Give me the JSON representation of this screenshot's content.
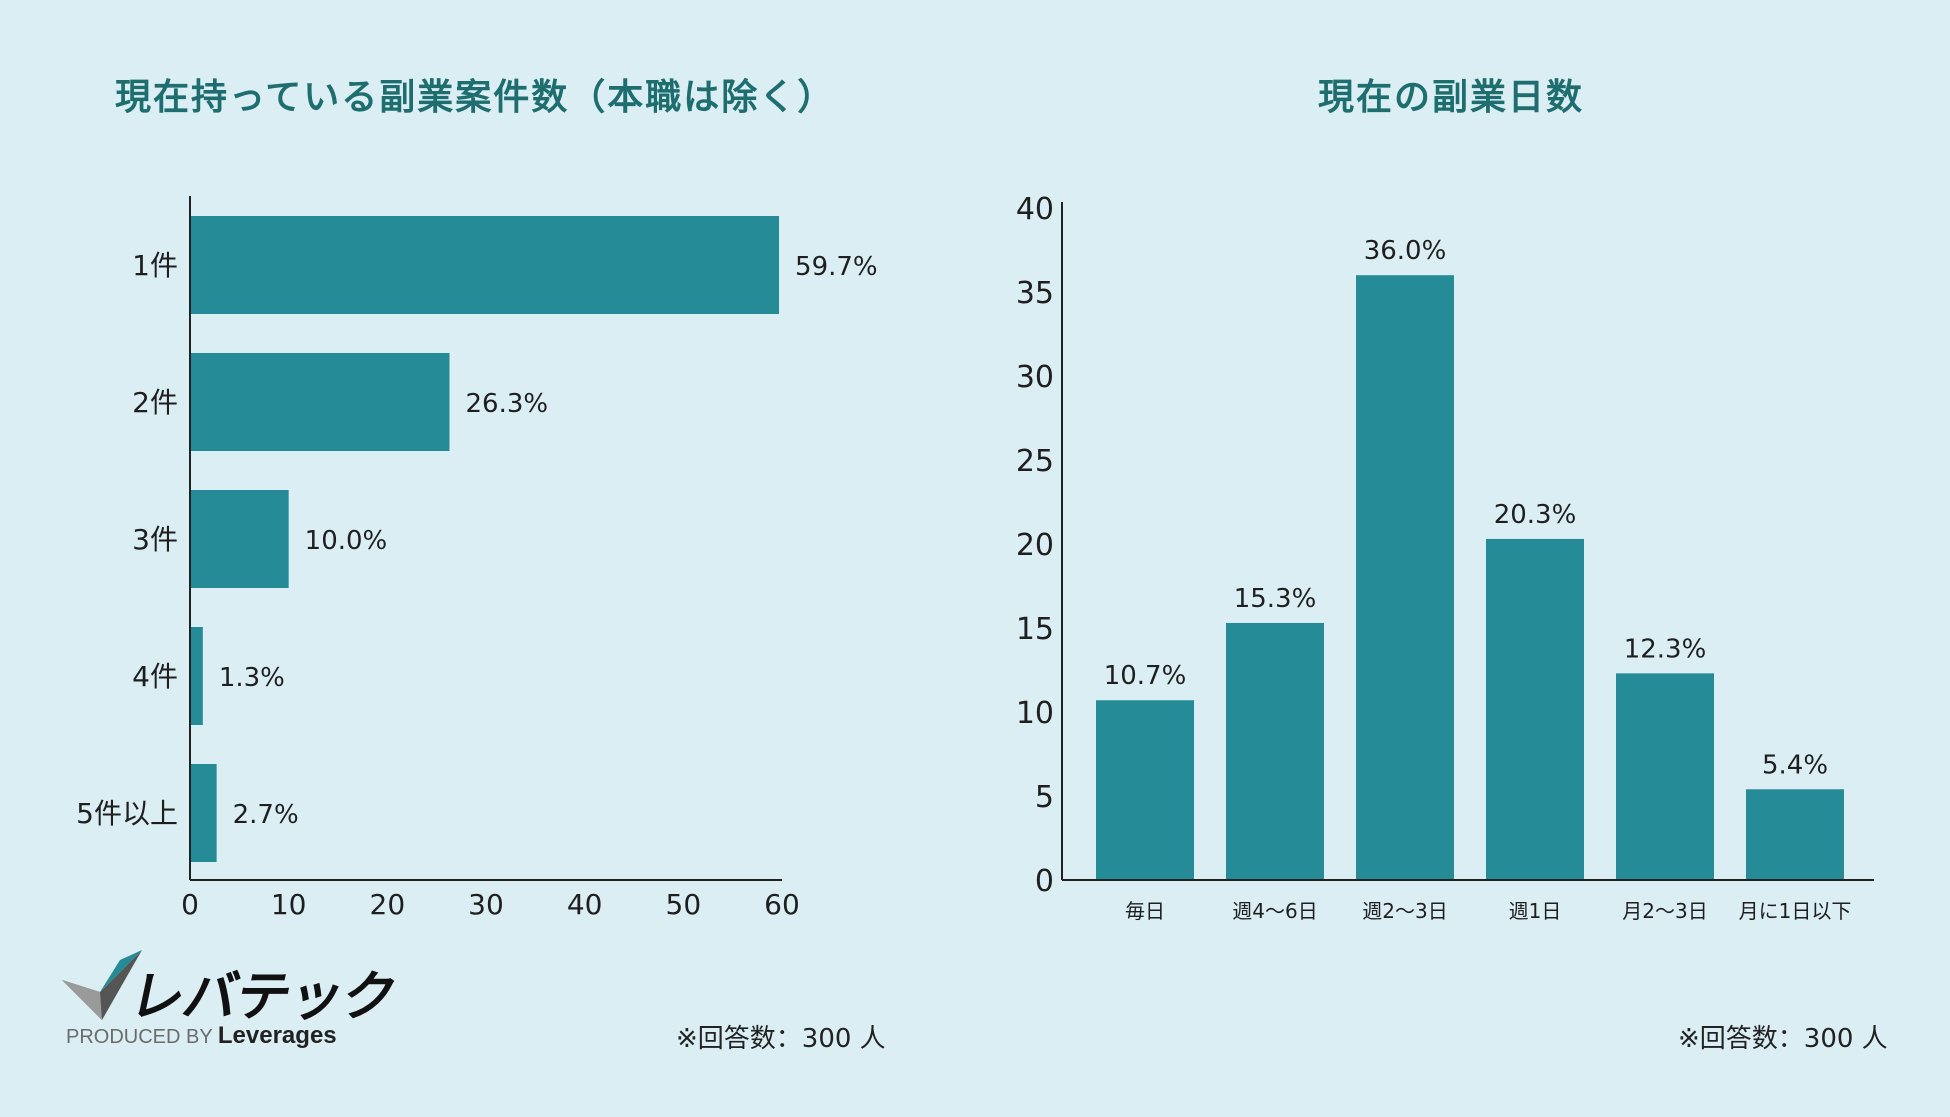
{
  "chart_data": [
    {
      "type": "bar",
      "orientation": "horizontal",
      "title": "現在持っている副業案件数（本職は除く）",
      "categories": [
        "1件",
        "2件",
        "3件",
        "4件",
        "5件以上"
      ],
      "values": [
        59.7,
        26.3,
        10.0,
        1.3,
        2.7
      ],
      "value_labels": [
        "59.7%",
        "26.3%",
        "10.0%",
        "1.3%",
        "2.7%"
      ],
      "xlim": [
        0,
        60
      ],
      "xticks": [
        0,
        10,
        20,
        30,
        40,
        50,
        60
      ],
      "grid": false,
      "color": "#258b97"
    },
    {
      "type": "bar",
      "orientation": "vertical",
      "title": "現在の副業日数",
      "categories": [
        "毎日",
        "週4～6日",
        "週2～3日",
        "週1日",
        "月2～3日",
        "月に1日以下"
      ],
      "values": [
        10.7,
        15.3,
        36.0,
        20.3,
        12.3,
        5.4
      ],
      "value_labels": [
        "10.7%",
        "15.3%",
        "36.0%",
        "20.3%",
        "12.3%",
        "5.4%"
      ],
      "ylim": [
        0,
        40
      ],
      "yticks": [
        0,
        5,
        10,
        15,
        20,
        25,
        30,
        35,
        40
      ],
      "grid": false,
      "color": "#258b97"
    }
  ],
  "notes": {
    "left": "※回答数：300 人",
    "right": "※回答数：300 人"
  },
  "logo": {
    "name": "レバテック",
    "produced_by": "PRODUCED BY",
    "company": "Leverages"
  },
  "colors": {
    "background": "#daeef4",
    "bar": "#258b97",
    "title": "#1f6e6f"
  }
}
